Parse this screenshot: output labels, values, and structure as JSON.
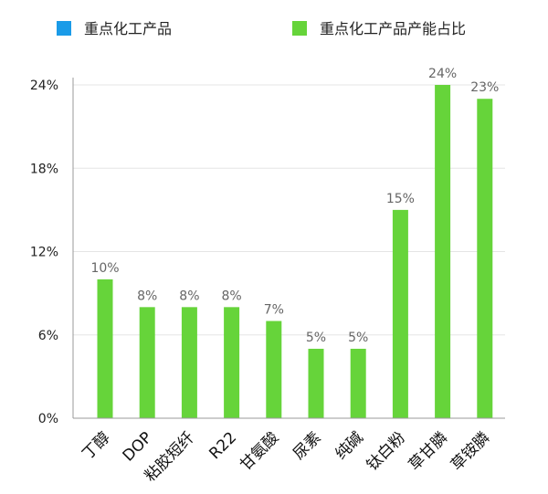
{
  "chart_data": {
    "type": "bar",
    "legend": [
      {
        "label": "重点化工产品",
        "color": "#1a9be8"
      },
      {
        "label": "重点化工产品产能占比",
        "color": "#66d43a"
      }
    ],
    "legend_position": "top",
    "categories": [
      "丁醇",
      "DOP",
      "粘胶短纤",
      "R22",
      "甘氨酸",
      "尿素",
      "纯碱",
      "钛白粉",
      "草甘膦",
      "草铵膦"
    ],
    "series": [
      {
        "name": "重点化工产品产能占比",
        "values": [
          10,
          8,
          8,
          8,
          7,
          5,
          5,
          15,
          24,
          23
        ],
        "data_labels": [
          "10%",
          "8%",
          "8%",
          "8%",
          "7%",
          "5%",
          "5%",
          "15%",
          "24%",
          "23%"
        ],
        "color": "#66d43a"
      }
    ],
    "ylim": [
      0,
      24
    ],
    "yticks": [
      0,
      6,
      12,
      18,
      24
    ],
    "ytick_labels": [
      "0%",
      "6%",
      "12%",
      "18%",
      "24%"
    ],
    "grid": true,
    "axis_color": "#999999",
    "grid_color": "#e5e5e5"
  }
}
